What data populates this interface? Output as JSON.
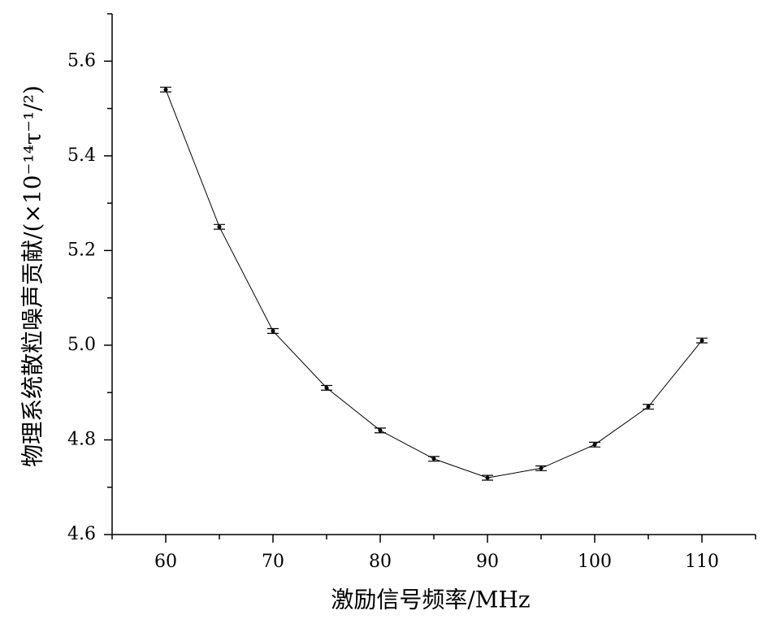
{
  "chart_data": {
    "type": "line",
    "x_label": "激励信号频率/MHz",
    "y_label": "物理系统散粒噪声贡献/(×10⁻¹⁴τ⁻¹/²)",
    "x": [
      60,
      65,
      70,
      75,
      80,
      85,
      90,
      95,
      100,
      105,
      110
    ],
    "series": [
      {
        "color": "#000000",
        "values": [
          5.54,
          5.25,
          5.03,
          4.91,
          4.82,
          4.76,
          4.72,
          4.74,
          4.79,
          4.87,
          5.01
        ],
        "errors": [
          0.005,
          0.005,
          0.005,
          0.005,
          0.005,
          0.005,
          0.005,
          0.005,
          0.005,
          0.005,
          0.005
        ]
      }
    ],
    "xlim": [
      55,
      115
    ],
    "xticks": [
      60,
      70,
      80,
      90,
      100,
      110
    ],
    "ylim": [
      4.6,
      5.7
    ],
    "yticks": [
      4.6,
      4.8,
      {
        "value": 5,
        "label": "5.0"
      },
      5.2,
      5.4,
      5.6
    ],
    "grid": false
  }
}
